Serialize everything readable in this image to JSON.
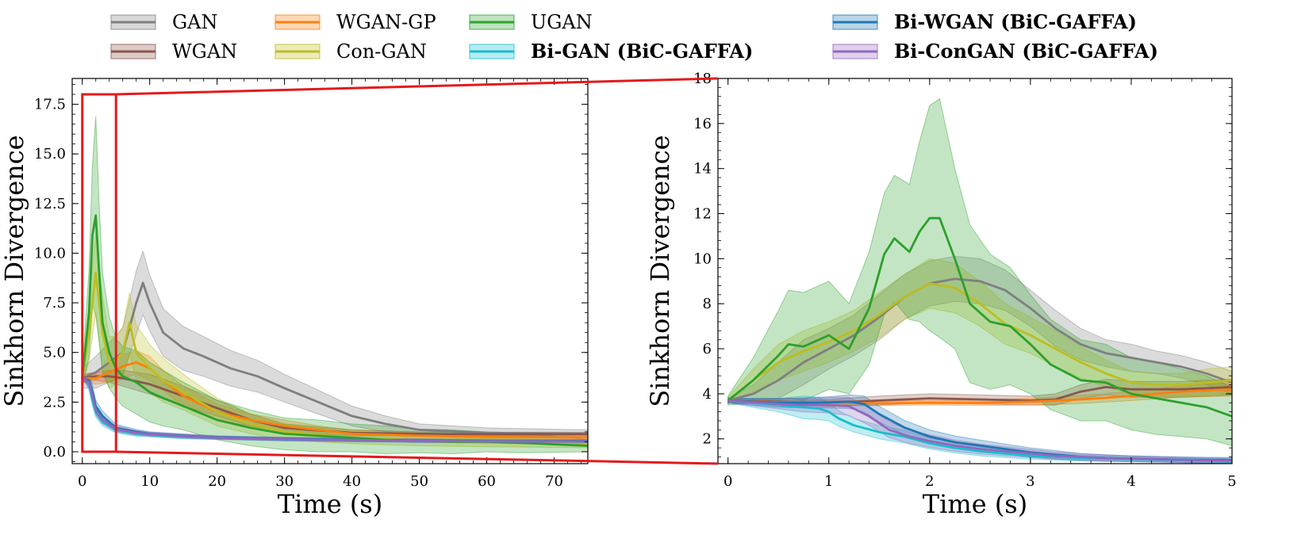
{
  "colors": {
    "GAN": "#7f7f7f",
    "WGAN": "#8c564b",
    "WGAN-GP": "#ff7f0e",
    "Con-GAN": "#bcbd22",
    "UGAN": "#2ca02c",
    "Bi-GAN": "#17becf",
    "Bi-WGAN": "#1f77b4",
    "Bi-ConGAN": "#9467bd",
    "zoom_box": "#e31a1c"
  },
  "legend": [
    {
      "key": "GAN",
      "label": "GAN",
      "bold": false
    },
    {
      "key": "WGAN",
      "label": "WGAN",
      "bold": false
    },
    {
      "key": "WGAN-GP",
      "label": "WGAN-GP",
      "bold": false
    },
    {
      "key": "Con-GAN",
      "label": "Con-GAN",
      "bold": false
    },
    {
      "key": "UGAN",
      "label": "UGAN",
      "bold": false
    },
    {
      "key": "Bi-GAN",
      "label": "Bi-GAN (BiC-GAFFA)",
      "bold": true
    },
    {
      "key": "Bi-WGAN",
      "label": "Bi-WGAN (BiC-GAFFA)",
      "bold": true
    },
    {
      "key": "Bi-ConGAN",
      "label": "Bi-ConGAN (BiC-GAFFA)",
      "bold": true
    }
  ],
  "chart_data": [
    {
      "type": "line",
      "xlabel": "Time (s)",
      "ylabel": "Sinkhorn Divergence",
      "xlim": [
        -1.5,
        75
      ],
      "ylim": [
        -0.6,
        18.8
      ],
      "xticks": [
        0,
        10,
        20,
        30,
        40,
        50,
        60,
        70
      ],
      "yticks": [
        0.0,
        2.5,
        5.0,
        7.5,
        10.0,
        12.5,
        15.0,
        17.5
      ],
      "ytick_labels": [
        "0.0",
        "2.5",
        "5.0",
        "7.5",
        "10.0",
        "12.5",
        "15.0",
        "17.5"
      ],
      "zoom_region": {
        "x": [
          0,
          5
        ],
        "y": [
          0,
          18
        ]
      },
      "series": [
        {
          "key": "GAN",
          "x": [
            0,
            2,
            4,
            6,
            8,
            9,
            10,
            12,
            15,
            18,
            22,
            26,
            30,
            35,
            40,
            45,
            50,
            60,
            75
          ],
          "y": [
            3.7,
            4.0,
            4.5,
            5.0,
            7.5,
            8.5,
            7.5,
            6.0,
            5.2,
            4.8,
            4.2,
            3.8,
            3.2,
            2.5,
            1.8,
            1.4,
            1.1,
            0.95,
            0.9
          ],
          "spread": [
            0.5,
            0.8,
            1.0,
            1.2,
            1.6,
            1.6,
            1.4,
            1.2,
            1.1,
            1.0,
            0.9,
            0.8,
            0.7,
            0.6,
            0.5,
            0.4,
            0.3,
            0.25,
            0.2
          ]
        },
        {
          "key": "WGAN",
          "x": [
            0,
            2,
            4,
            6,
            10,
            15,
            20,
            25,
            30,
            40,
            50,
            60,
            75
          ],
          "y": [
            3.7,
            3.8,
            3.8,
            3.7,
            3.4,
            2.8,
            2.2,
            1.6,
            1.2,
            0.95,
            0.9,
            0.88,
            0.88
          ],
          "spread": [
            0.2,
            0.2,
            0.3,
            0.4,
            0.5,
            0.5,
            0.4,
            0.3,
            0.2,
            0.15,
            0.1,
            0.1,
            0.1
          ]
        },
        {
          "key": "WGAN-GP",
          "x": [
            0,
            2,
            4,
            6,
            8,
            10,
            12,
            15,
            20,
            25,
            30,
            35,
            40,
            50,
            60,
            75
          ],
          "y": [
            3.7,
            3.7,
            4.0,
            4.3,
            4.5,
            4.2,
            3.6,
            2.8,
            2.0,
            1.6,
            1.3,
            1.1,
            0.9,
            0.8,
            0.75,
            0.7
          ],
          "spread": [
            0.2,
            0.3,
            0.5,
            0.6,
            0.6,
            0.6,
            0.5,
            0.5,
            0.4,
            0.3,
            0.3,
            0.2,
            0.2,
            0.15,
            0.1,
            0.1
          ]
        },
        {
          "key": "Con-GAN",
          "x": [
            0,
            1,
            2,
            3,
            4,
            5,
            6,
            7,
            8,
            10,
            12,
            15,
            20,
            25,
            30,
            40,
            50,
            60,
            75
          ],
          "y": [
            3.7,
            6.0,
            9.0,
            6.0,
            4.5,
            4.6,
            5.0,
            6.5,
            5.0,
            4.2,
            3.6,
            3.0,
            2.0,
            1.4,
            1.0,
            0.7,
            0.55,
            0.45,
            0.4
          ],
          "spread": [
            0.4,
            1.5,
            2.0,
            1.8,
            1.3,
            1.2,
            1.3,
            1.5,
            1.4,
            1.2,
            1.1,
            0.9,
            0.7,
            0.5,
            0.4,
            0.3,
            0.25,
            0.2,
            0.2
          ]
        },
        {
          "key": "UGAN",
          "x": [
            0,
            1,
            1.5,
            2,
            2.5,
            3,
            4,
            5,
            6,
            8,
            10,
            12,
            15,
            20,
            25,
            30,
            35,
            40,
            45,
            50,
            55,
            60,
            65,
            75
          ],
          "y": [
            3.7,
            7.0,
            10.9,
            11.9,
            9.0,
            6.5,
            5.0,
            4.2,
            3.8,
            3.5,
            3.0,
            2.7,
            2.3,
            1.6,
            1.2,
            0.9,
            0.8,
            0.7,
            0.6,
            0.55,
            0.5,
            0.5,
            0.45,
            0.3
          ],
          "spread": [
            0.4,
            2.2,
            3.5,
            5.0,
            3.5,
            2.5,
            1.8,
            1.5,
            1.5,
            1.6,
            1.5,
            1.4,
            1.2,
            1.0,
            0.9,
            0.8,
            0.8,
            0.7,
            0.7,
            0.6,
            0.6,
            0.5,
            0.5,
            0.3
          ]
        },
        {
          "key": "Bi-GAN",
          "x": [
            0,
            0.5,
            1,
            1.5,
            2,
            3,
            5,
            8,
            10,
            15,
            20,
            30,
            40,
            50,
            60,
            75
          ],
          "y": [
            3.7,
            3.65,
            3.4,
            2.6,
            2.0,
            1.5,
            1.1,
            0.9,
            0.85,
            0.75,
            0.7,
            0.62,
            0.58,
            0.55,
            0.52,
            0.5
          ],
          "spread": [
            0.1,
            0.15,
            0.3,
            0.3,
            0.25,
            0.2,
            0.15,
            0.12,
            0.1,
            0.1,
            0.08,
            0.08,
            0.08,
            0.08,
            0.08,
            0.08
          ]
        },
        {
          "key": "Bi-WGAN",
          "x": [
            0,
            0.5,
            1,
            1.5,
            2,
            3,
            5,
            8,
            10,
            15,
            20,
            30,
            40,
            50,
            60,
            75
          ],
          "y": [
            3.7,
            3.65,
            3.6,
            3.0,
            2.3,
            1.8,
            1.2,
            1.0,
            0.9,
            0.8,
            0.72,
            0.65,
            0.6,
            0.56,
            0.53,
            0.52
          ],
          "spread": [
            0.1,
            0.15,
            0.3,
            0.35,
            0.3,
            0.25,
            0.18,
            0.12,
            0.1,
            0.1,
            0.08,
            0.08,
            0.08,
            0.08,
            0.08,
            0.08
          ]
        },
        {
          "key": "Bi-ConGAN",
          "x": [
            0,
            0.5,
            1,
            1.5,
            2,
            3,
            5,
            8,
            10,
            15,
            20,
            30,
            40,
            50,
            60,
            75
          ],
          "y": [
            3.7,
            3.6,
            3.5,
            2.8,
            2.1,
            1.6,
            1.15,
            0.95,
            0.88,
            0.78,
            0.7,
            0.63,
            0.59,
            0.55,
            0.52,
            0.5
          ],
          "spread": [
            0.1,
            0.15,
            0.3,
            0.3,
            0.25,
            0.2,
            0.15,
            0.12,
            0.1,
            0.1,
            0.08,
            0.08,
            0.08,
            0.08,
            0.08,
            0.08
          ]
        }
      ]
    },
    {
      "type": "line",
      "xlabel": "Time (s)",
      "ylabel": "Sinkhorn Divergence",
      "xlim": [
        -0.1,
        5
      ],
      "ylim": [
        0.9,
        18
      ],
      "xticks": [
        0,
        1,
        2,
        3,
        4,
        5
      ],
      "yticks": [
        2,
        4,
        6,
        8,
        10,
        12,
        14,
        16,
        18
      ],
      "ytick_labels": [
        "2",
        "4",
        "6",
        "8",
        "10",
        "12",
        "14",
        "16",
        "18"
      ],
      "series": [
        {
          "key": "GAN",
          "x": [
            0,
            0.25,
            0.5,
            0.75,
            1,
            1.25,
            1.5,
            1.75,
            2,
            2.25,
            2.5,
            2.75,
            3,
            3.25,
            3.5,
            3.75,
            4,
            4.25,
            4.5,
            4.75,
            5
          ],
          "y": [
            3.7,
            4.0,
            4.6,
            5.4,
            6.0,
            6.6,
            7.4,
            8.3,
            8.9,
            9.1,
            9.0,
            8.6,
            7.8,
            6.9,
            6.2,
            5.8,
            5.6,
            5.4,
            5.2,
            4.9,
            4.5
          ],
          "spread": [
            0.1,
            0.4,
            0.8,
            1.0,
            0.9,
            0.9,
            1.0,
            1.0,
            1.0,
            1.0,
            1.0,
            0.9,
            0.8,
            0.8,
            0.7,
            0.6,
            0.6,
            0.5,
            0.5,
            0.5,
            0.5
          ]
        },
        {
          "key": "WGAN",
          "x": [
            0,
            0.5,
            1,
            1.5,
            2,
            2.5,
            3,
            3.25,
            3.5,
            3.75,
            4,
            4.5,
            5
          ],
          "y": [
            3.7,
            3.65,
            3.6,
            3.7,
            3.8,
            3.75,
            3.7,
            3.75,
            4.1,
            4.3,
            4.2,
            4.2,
            4.3
          ],
          "spread": [
            0.1,
            0.12,
            0.15,
            0.2,
            0.2,
            0.2,
            0.2,
            0.25,
            0.3,
            0.35,
            0.35,
            0.35,
            0.35
          ]
        },
        {
          "key": "WGAN-GP",
          "x": [
            0,
            0.5,
            1,
            1.5,
            2,
            2.5,
            3,
            3.5,
            4,
            4.5,
            5
          ],
          "y": [
            3.7,
            3.62,
            3.6,
            3.58,
            3.6,
            3.6,
            3.65,
            3.75,
            3.9,
            4.1,
            4.2
          ],
          "spread": [
            0.05,
            0.08,
            0.1,
            0.1,
            0.1,
            0.12,
            0.15,
            0.18,
            0.2,
            0.25,
            0.3
          ]
        },
        {
          "key": "Con-GAN",
          "x": [
            0,
            0.25,
            0.5,
            0.75,
            1,
            1.25,
            1.5,
            1.75,
            2,
            2.25,
            2.5,
            2.75,
            3,
            3.25,
            3.5,
            3.75,
            4,
            4.25,
            4.5,
            4.75,
            5
          ],
          "y": [
            3.7,
            4.6,
            5.4,
            5.9,
            6.3,
            6.8,
            7.5,
            8.3,
            8.9,
            8.7,
            8.0,
            7.1,
            6.6,
            6.0,
            5.4,
            4.9,
            4.5,
            4.4,
            4.4,
            4.5,
            4.6
          ],
          "spread": [
            0.15,
            0.5,
            0.8,
            0.9,
            0.9,
            0.9,
            1.0,
            1.0,
            1.1,
            1.1,
            1.0,
            0.9,
            0.8,
            0.8,
            0.7,
            0.6,
            0.5,
            0.5,
            0.5,
            0.6,
            0.6
          ]
        },
        {
          "key": "UGAN",
          "x": [
            0,
            0.25,
            0.5,
            0.6,
            0.75,
            1,
            1.2,
            1.4,
            1.55,
            1.65,
            1.8,
            1.9,
            2.0,
            2.1,
            2.25,
            2.4,
            2.6,
            2.8,
            3.0,
            3.2,
            3.5,
            3.75,
            4,
            4.25,
            4.5,
            4.75,
            5
          ],
          "y": [
            3.7,
            4.6,
            5.7,
            6.2,
            6.1,
            6.6,
            6.0,
            7.8,
            10.2,
            10.9,
            10.3,
            11.2,
            11.8,
            11.8,
            10.0,
            8.0,
            7.2,
            7.0,
            6.2,
            5.3,
            4.6,
            4.5,
            4.0,
            3.8,
            3.6,
            3.4,
            3.0
          ],
          "spread": [
            0.2,
            1.0,
            2.0,
            2.4,
            2.4,
            2.4,
            2.0,
            2.5,
            2.7,
            2.8,
            3.0,
            4.0,
            5.0,
            5.3,
            4.0,
            3.5,
            3.0,
            2.6,
            2.2,
            2.0,
            1.8,
            1.7,
            1.6,
            1.6,
            1.5,
            1.4,
            1.3
          ]
        },
        {
          "key": "Bi-GAN",
          "x": [
            0,
            0.25,
            0.5,
            0.75,
            0.9,
            1.0,
            1.1,
            1.25,
            1.5,
            1.75,
            2,
            2.25,
            2.5,
            2.75,
            3,
            3.25,
            3.5,
            3.75,
            4,
            4.5,
            5
          ],
          "y": [
            3.7,
            3.6,
            3.5,
            3.4,
            3.35,
            3.2,
            2.9,
            2.6,
            2.3,
            2.1,
            1.8,
            1.6,
            1.45,
            1.35,
            1.25,
            1.2,
            1.15,
            1.12,
            1.1,
            1.05,
            1.0
          ],
          "spread": [
            0.1,
            0.2,
            0.3,
            0.5,
            0.5,
            0.4,
            0.35,
            0.3,
            0.3,
            0.28,
            0.25,
            0.22,
            0.2,
            0.18,
            0.15,
            0.14,
            0.13,
            0.12,
            0.11,
            0.1,
            0.1
          ]
        },
        {
          "key": "Bi-WGAN",
          "x": [
            0,
            0.25,
            0.5,
            0.75,
            1.0,
            1.2,
            1.35,
            1.5,
            1.75,
            2,
            2.25,
            2.5,
            2.75,
            3,
            3.25,
            3.5,
            3.75,
            4,
            4.5,
            5
          ],
          "y": [
            3.7,
            3.65,
            3.6,
            3.6,
            3.62,
            3.65,
            3.55,
            3.1,
            2.5,
            2.1,
            1.85,
            1.7,
            1.55,
            1.4,
            1.3,
            1.2,
            1.15,
            1.12,
            1.08,
            1.05
          ],
          "spread": [
            0.1,
            0.15,
            0.2,
            0.22,
            0.25,
            0.3,
            0.35,
            0.35,
            0.32,
            0.3,
            0.28,
            0.25,
            0.22,
            0.2,
            0.18,
            0.15,
            0.14,
            0.13,
            0.12,
            0.12
          ]
        },
        {
          "key": "Bi-ConGAN",
          "x": [
            0,
            0.25,
            0.5,
            0.75,
            1.0,
            1.2,
            1.4,
            1.6,
            1.8,
            2,
            2.25,
            2.5,
            2.75,
            3,
            3.25,
            3.5,
            3.75,
            4,
            4.5,
            5
          ],
          "y": [
            3.7,
            3.62,
            3.55,
            3.5,
            3.5,
            3.45,
            3.0,
            2.4,
            2.1,
            1.9,
            1.7,
            1.55,
            1.45,
            1.35,
            1.25,
            1.2,
            1.15,
            1.12,
            1.07,
            1.02
          ],
          "spread": [
            0.1,
            0.15,
            0.22,
            0.3,
            0.35,
            0.4,
            0.4,
            0.35,
            0.3,
            0.28,
            0.25,
            0.22,
            0.2,
            0.18,
            0.16,
            0.15,
            0.14,
            0.13,
            0.12,
            0.12
          ]
        }
      ]
    }
  ]
}
